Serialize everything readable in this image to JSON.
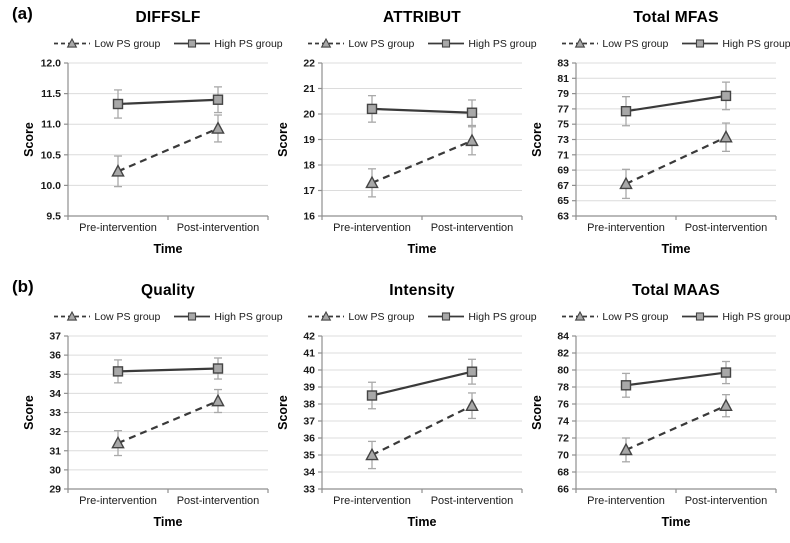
{
  "figure": {
    "panel_a_label": "(a)",
    "panel_b_label": "(b)"
  },
  "legend": {
    "items": [
      {
        "label": "Low PS group",
        "marker": "triangle",
        "line": "dashed"
      },
      {
        "label": "High PS group",
        "marker": "square",
        "line": "solid"
      }
    ]
  },
  "colors": {
    "line": "#3a3a3a",
    "error_bar": "#a9a9a9",
    "marker_fill": "#a8a8a8",
    "marker_stroke": "#444444",
    "grid": "#dcdcdc",
    "axis": "#8f8f8f",
    "text": "#000000"
  },
  "chart_data": [
    {
      "type": "line",
      "panel": "a",
      "title": "DIFFSLF",
      "xlabel": "Time",
      "ylabel": "Score",
      "categories": [
        "Pre-intervention",
        "Post-intervention"
      ],
      "ylim": [
        9.5,
        12.0
      ],
      "ytick_step": 0.5,
      "ytick_decimals": 1,
      "grid": true,
      "legend_position": "top",
      "series": [
        {
          "name": "Low PS group",
          "marker": "triangle",
          "line": "dashed",
          "values": [
            10.23,
            10.93
          ],
          "errors": [
            0.25,
            0.22
          ]
        },
        {
          "name": "High PS group",
          "marker": "square",
          "line": "solid",
          "values": [
            11.33,
            11.4
          ],
          "errors": [
            0.23,
            0.21
          ]
        }
      ]
    },
    {
      "type": "line",
      "panel": "a",
      "title": "ATTRIBUT",
      "xlabel": "Time",
      "ylabel": "Score",
      "categories": [
        "Pre-intervention",
        "Post-intervention"
      ],
      "ylim": [
        16,
        22
      ],
      "ytick_step": 1,
      "ytick_decimals": 0,
      "grid": true,
      "legend_position": "top",
      "series": [
        {
          "name": "Low PS group",
          "marker": "triangle",
          "line": "dashed",
          "values": [
            17.3,
            18.95
          ],
          "errors": [
            0.55,
            0.55
          ]
        },
        {
          "name": "High PS group",
          "marker": "square",
          "line": "solid",
          "values": [
            20.2,
            20.05
          ],
          "errors": [
            0.52,
            0.5
          ]
        }
      ]
    },
    {
      "type": "line",
      "panel": "a",
      "title": "Total MFAS",
      "xlabel": "Time",
      "ylabel": "Score",
      "categories": [
        "Pre-intervention",
        "Post-intervention"
      ],
      "ylim": [
        63,
        83
      ],
      "ytick_step": 2,
      "ytick_decimals": 0,
      "grid": true,
      "legend_position": "top",
      "series": [
        {
          "name": "Low PS group",
          "marker": "triangle",
          "line": "dashed",
          "values": [
            67.2,
            73.3
          ],
          "errors": [
            1.9,
            1.85
          ]
        },
        {
          "name": "High PS group",
          "marker": "square",
          "line": "solid",
          "values": [
            76.7,
            78.7
          ],
          "errors": [
            1.9,
            1.8
          ]
        }
      ]
    },
    {
      "type": "line",
      "panel": "b",
      "title": "Quality",
      "xlabel": "Time",
      "ylabel": "Score",
      "categories": [
        "Pre-intervention",
        "Post-intervention"
      ],
      "ylim": [
        29,
        37
      ],
      "ytick_step": 1,
      "ytick_decimals": 0,
      "grid": true,
      "legend_position": "top",
      "series": [
        {
          "name": "Low PS group",
          "marker": "triangle",
          "line": "dashed",
          "values": [
            31.4,
            33.6
          ],
          "errors": [
            0.65,
            0.6
          ]
        },
        {
          "name": "High PS group",
          "marker": "square",
          "line": "solid",
          "values": [
            35.15,
            35.3
          ],
          "errors": [
            0.6,
            0.55
          ]
        }
      ]
    },
    {
      "type": "line",
      "panel": "b",
      "title": "Intensity",
      "xlabel": "Time",
      "ylabel": "Score",
      "categories": [
        "Pre-intervention",
        "Post-intervention"
      ],
      "ylim": [
        33,
        42
      ],
      "ytick_step": 1,
      "ytick_decimals": 0,
      "grid": true,
      "legend_position": "top",
      "series": [
        {
          "name": "Low PS group",
          "marker": "triangle",
          "line": "dashed",
          "values": [
            35.0,
            37.9
          ],
          "errors": [
            0.8,
            0.75
          ]
        },
        {
          "name": "High PS group",
          "marker": "square",
          "line": "solid",
          "values": [
            38.5,
            39.9
          ],
          "errors": [
            0.78,
            0.73
          ]
        }
      ]
    },
    {
      "type": "line",
      "panel": "b",
      "title": "Total MAAS",
      "xlabel": "Time",
      "ylabel": "Score",
      "categories": [
        "Pre-intervention",
        "Post-intervention"
      ],
      "ylim": [
        66,
        84
      ],
      "ytick_step": 2,
      "ytick_decimals": 0,
      "grid": true,
      "legend_position": "top",
      "series": [
        {
          "name": "Low PS group",
          "marker": "triangle",
          "line": "dashed",
          "values": [
            70.6,
            75.8
          ],
          "errors": [
            1.4,
            1.3
          ]
        },
        {
          "name": "High PS group",
          "marker": "square",
          "line": "solid",
          "values": [
            78.2,
            79.7
          ],
          "errors": [
            1.4,
            1.3
          ]
        }
      ]
    }
  ]
}
